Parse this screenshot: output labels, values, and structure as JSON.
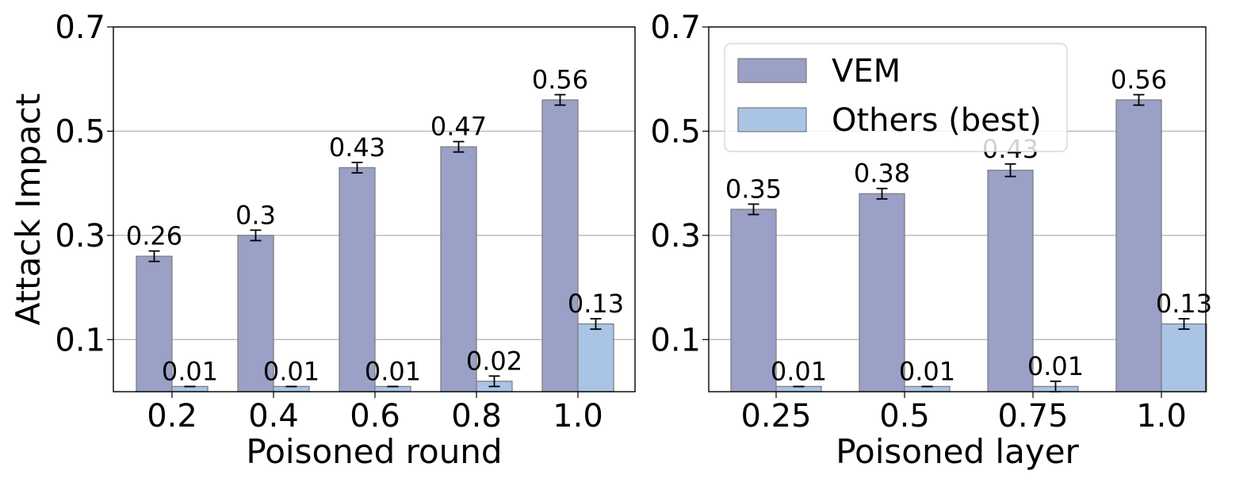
{
  "chart_data": [
    {
      "type": "bar",
      "xlabel": "Poisoned round",
      "ylabel": "Attack Impact",
      "ylim": [
        0,
        0.7
      ],
      "yticks": [
        "0.1",
        "0.3",
        "0.5",
        "0.7"
      ],
      "grid": "horizontal",
      "categories": [
        "0.2",
        "0.4",
        "0.6",
        "0.8",
        "1.0"
      ],
      "series": [
        {
          "name": "VEM",
          "values": [
            0.26,
            0.3,
            0.43,
            0.47,
            0.56
          ],
          "errors": [
            0.01,
            0.01,
            0.01,
            0.01,
            0.01
          ],
          "labels": [
            "0.26",
            "0.3",
            "0.43",
            "0.47",
            "0.56"
          ],
          "color": "#9aa0c6"
        },
        {
          "name": "Others (best)",
          "values": [
            0.01,
            0.01,
            0.01,
            0.02,
            0.13
          ],
          "errors": [
            0.0,
            0.0,
            0.0,
            0.01,
            0.01
          ],
          "labels": [
            "0.01",
            "0.01",
            "0.01",
            "0.02",
            "0.13"
          ],
          "color": "#a9c4e5"
        }
      ]
    },
    {
      "type": "bar",
      "xlabel": "Poisoned layer",
      "ylabel": "",
      "ylim": [
        0,
        0.7
      ],
      "yticks": [
        "0.1",
        "0.3",
        "0.5",
        "0.7"
      ],
      "grid": "horizontal",
      "legend": "top-left",
      "categories": [
        "0.25",
        "0.5",
        "0.75",
        "1.0"
      ],
      "series": [
        {
          "name": "VEM",
          "values": [
            0.35,
            0.38,
            0.425,
            0.56
          ],
          "errors": [
            0.01,
            0.01,
            0.012,
            0.01
          ],
          "labels": [
            "0.35",
            "0.38",
            "0.43",
            "0.56"
          ],
          "color": "#9aa0c6"
        },
        {
          "name": "Others (best)",
          "values": [
            0.01,
            0.01,
            0.01,
            0.13
          ],
          "errors": [
            0.0,
            0.0,
            0.01,
            0.01
          ],
          "labels": [
            "0.01",
            "0.01",
            "0.01",
            "0.13"
          ],
          "color": "#a9c4e5"
        }
      ]
    }
  ]
}
